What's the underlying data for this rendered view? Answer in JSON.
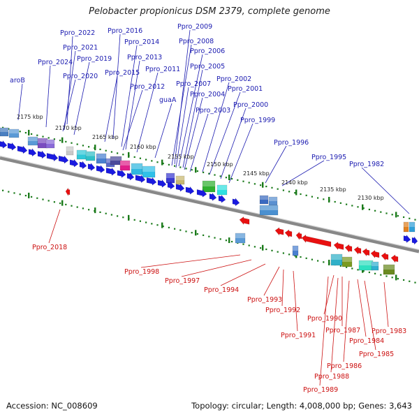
{
  "title": "Pelobacter propionicus DSM 2379, complete genome",
  "footer": {
    "accession": "Accession: NC_008609",
    "topology": "Topology: circular; Length: 4,008,000 bp; Genes: 3,643"
  },
  "colors": {
    "forward_gene": "#1a1ae0",
    "reverse_gene": "#e81010",
    "forward_label": "#1a1ab0",
    "reverse_label": "#cc1010",
    "tick": "#1a7a1a"
  },
  "scale_labels": [
    "2175 kbp",
    "2170 kbp",
    "2165 kbp",
    "2160 kbp",
    "2155 kbp",
    "2150 kbp",
    "2145 kbp",
    "2140 kbp",
    "2135 kbp",
    "2130 kbp"
  ],
  "forward_labels": [
    "Ppro_2022",
    "Ppro_2016",
    "Ppro_2009",
    "Ppro_2014",
    "Ppro_2008",
    "Ppro_2021",
    "Ppro_2006",
    "Ppro_2019",
    "Ppro_2013",
    "Ppro_2024",
    "Ppro_2005",
    "Ppro_2015",
    "Ppro_2011",
    "Ppro_2020",
    "Ppro_2002",
    "aroB",
    "Ppro_2007",
    "Ppro_2012",
    "Ppro_2001",
    "Ppro_2004",
    "guaA",
    "Ppro_2000",
    "Ppro_2003",
    "Ppro_1999",
    "Ppro_1996",
    "Ppro_1995",
    "Ppro_1982"
  ],
  "reverse_labels": [
    "Ppro_2018",
    "Ppro_1998",
    "Ppro_1997",
    "Ppro_1994",
    "Ppro_1993",
    "Ppro_1992",
    "Ppro_1991",
    "Ppro_1990",
    "Ppro_1987",
    "Ppro_1983",
    "Ppro_1984",
    "Ppro_1985",
    "Ppro_1986",
    "Ppro_1988",
    "Ppro_1989"
  ]
}
